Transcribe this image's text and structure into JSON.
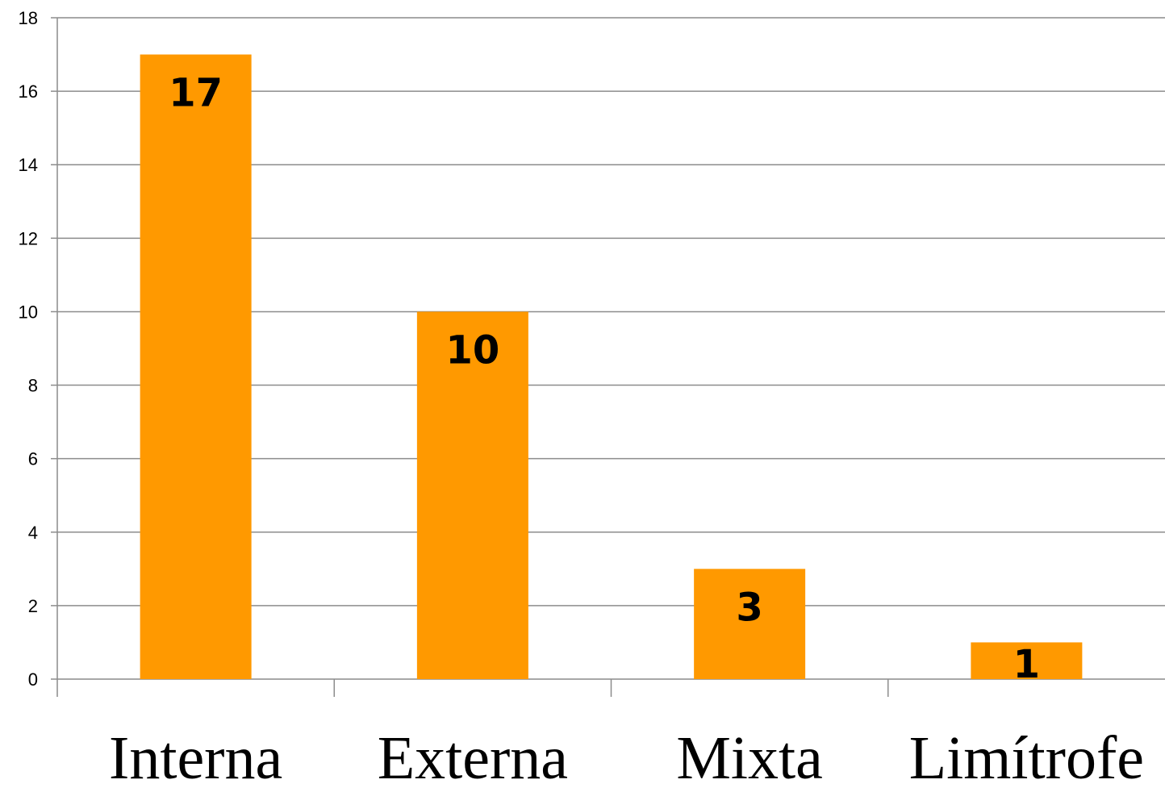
{
  "chart_data": {
    "type": "bar",
    "categories": [
      "Interna",
      "Externa",
      "Mixta",
      "Limítrofe"
    ],
    "values": [
      17,
      10,
      3,
      1
    ],
    "data_labels": [
      "17",
      "10",
      "3",
      "1"
    ],
    "title": "",
    "xlabel": "",
    "ylabel": "",
    "ylim": [
      0,
      18
    ],
    "yticks": [
      0,
      2,
      4,
      6,
      8,
      10,
      12,
      14,
      16,
      18
    ],
    "ytick_labels": [
      "0",
      "2",
      "4",
      "6",
      "8",
      "10",
      "12",
      "14",
      "16",
      "18"
    ],
    "grid": true,
    "legend": "none"
  },
  "colors": {
    "bar": "#FF9900",
    "grid": "#8C8C8C",
    "axis": "#8C8C8C",
    "text": "#000000"
  }
}
